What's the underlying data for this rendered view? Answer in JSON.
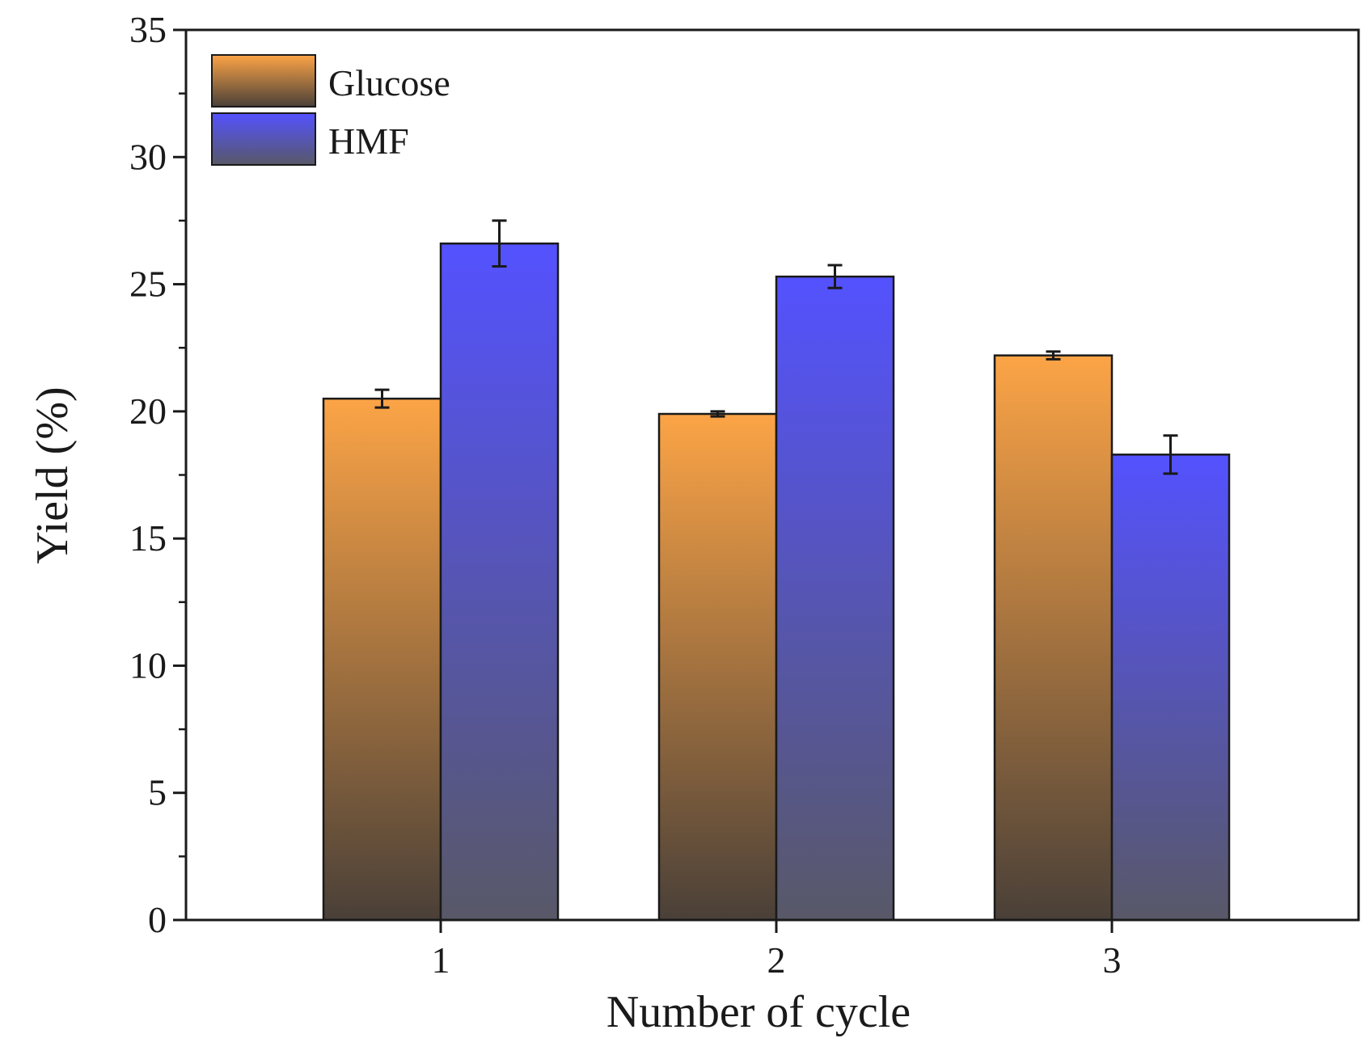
{
  "chart_data": {
    "type": "bar",
    "title": "",
    "xlabel": "Number of cycle",
    "ylabel": "Yield (%)",
    "categories": [
      "1",
      "2",
      "3"
    ],
    "ylim": [
      0,
      35
    ],
    "yticks": [
      "0",
      "5",
      "10",
      "15",
      "20",
      "25",
      "30",
      "35"
    ],
    "grid": false,
    "legend_position": "top-left",
    "series": [
      {
        "name": "Glucose",
        "values": [
          20.5,
          19.9,
          22.2
        ],
        "errors": [
          0.35,
          0.1,
          0.15
        ],
        "color_top": "#FCA446",
        "color_bottom": "#4A4038"
      },
      {
        "name": "HMF",
        "values": [
          26.6,
          25.3,
          18.3
        ],
        "errors": [
          0.9,
          0.45,
          0.75
        ],
        "color_top": "#5452FE",
        "color_bottom": "#585868"
      }
    ]
  }
}
